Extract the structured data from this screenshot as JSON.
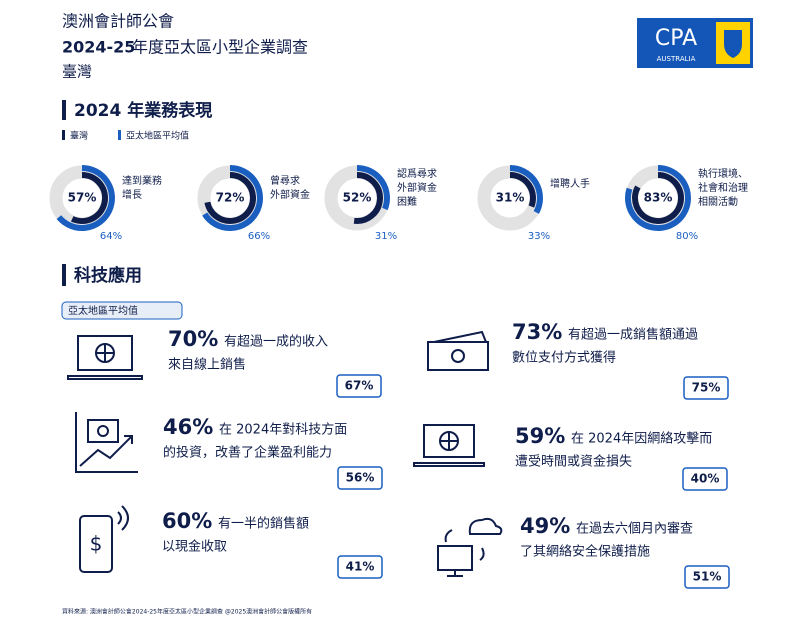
{
  "header": {
    "org": "澳洲會計師公會",
    "title_year": "2024-25",
    "title_rest": "年度亞太區小型企業調查",
    "region": "臺灣",
    "logo": {
      "main": "CPA",
      "sub": "AUSTRALIA"
    }
  },
  "business": {
    "heading": "2024 年業務表現",
    "legend": [
      "臺灣",
      "亞太地區平均值"
    ],
    "items": [
      {
        "label": [
          "達到業務",
          "增長"
        ],
        "taiwan": {
          "value": 57,
          "label": "57%"
        },
        "apac": {
          "value": 64,
          "label": "64%"
        }
      },
      {
        "label": [
          "曾尋求",
          "外部資金"
        ],
        "taiwan": {
          "value": 72,
          "label": "72%"
        },
        "apac": {
          "value": 66,
          "label": "66%"
        }
      },
      {
        "label": [
          "認爲尋求",
          "外部資金",
          "困難"
        ],
        "taiwan": {
          "value": 52,
          "label": "52%"
        },
        "apac": {
          "value": 31,
          "label": "31%"
        }
      },
      {
        "label": [
          "增聘人手"
        ],
        "taiwan": {
          "value": 31,
          "label": "31%"
        },
        "apac": {
          "value": 33,
          "label": "33%"
        }
      },
      {
        "label": [
          "執行環境、",
          "社會和治理",
          "相關活動"
        ],
        "taiwan": {
          "value": 83,
          "label": "83%"
        },
        "apac": {
          "value": 80,
          "label": "80%"
        }
      }
    ]
  },
  "tech": {
    "heading": "科技應用",
    "badge": "亞太地區平均值",
    "items": [
      {
        "stat": "70%",
        "text": [
          "有超過一成的收入",
          "來自線上銷售"
        ],
        "apac": "67%"
      },
      {
        "stat": "73%",
        "text": [
          "有超過一成銷售額通過",
          "數位支付方式獲得"
        ],
        "apac": "75%"
      },
      {
        "stat": "46%",
        "text": [
          "在 2024年對科技方面",
          "的投資，改善了企業盈利能力"
        ],
        "apac": "56%"
      },
      {
        "stat": "59%",
        "text": [
          "在 2024年因網絡攻擊而",
          "遭受時間或資金損失"
        ],
        "apac": "40%"
      },
      {
        "stat": "60%",
        "text": [
          "有一半的銷售額",
          "以現金收取"
        ],
        "apac": "41%"
      },
      {
        "stat": "49%",
        "text": [
          "在過去六個月內審查",
          "了其網絡安全保護措施"
        ],
        "apac": "51%"
      }
    ]
  },
  "footer": "資料來源:  澳洲會計師公會2024-25年度亞太區小型企業調查 @2025澳洲會計師公會版權所有"
}
